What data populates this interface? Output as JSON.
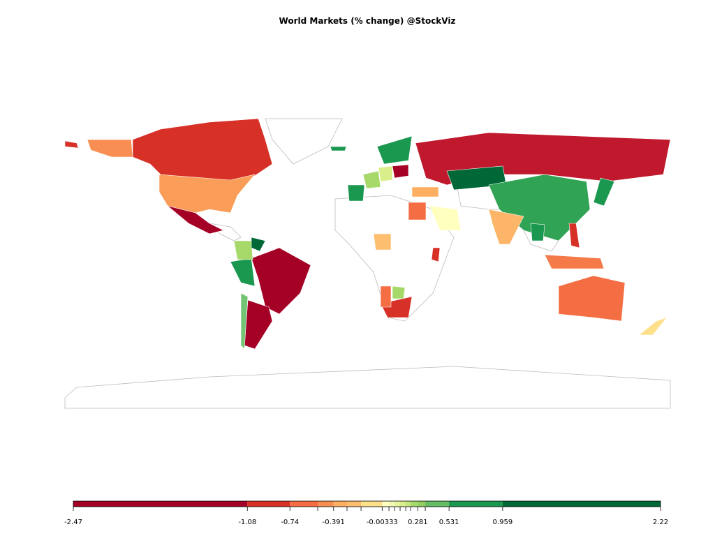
{
  "title": "World Markets (% change) @StockViz",
  "legend": {
    "lim": [
      -2.47,
      2.22
    ],
    "ticks": [
      -2.47,
      -1.08,
      -0.74,
      -0.391,
      -0.00333,
      0.281,
      0.531,
      0.959,
      2.22
    ],
    "minor_ticks": [
      -0.518,
      -0.284,
      -0.172,
      0.051,
      0.095,
      0.14,
      0.185,
      0.224,
      0.341
    ],
    "colors": [
      "#a50026",
      "#d73027",
      "#f46d43",
      "#f98e52",
      "#fdae61",
      "#fdbf6f",
      "#fee08b",
      "#ffffbf",
      "#f3f9b4",
      "#e6f59d",
      "#d9ef8b",
      "#c3e67d",
      "#a6d96a",
      "#91cf60",
      "#66bd63",
      "#1a9850",
      "#006837"
    ]
  }
}
